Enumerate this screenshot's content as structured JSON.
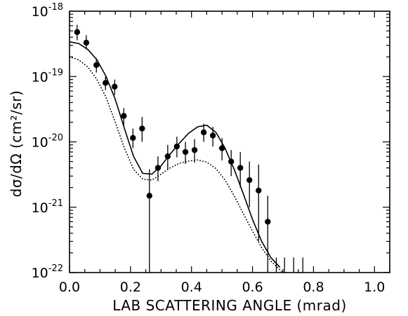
{
  "chart_data": {
    "type": "scatter",
    "xlabel": "LAB SCATTERING ANGLE (mrad)",
    "ylabel": "dσ/dΩ (cm²/sr)",
    "xlim": [
      0.0,
      1.05
    ],
    "ylim": [
      1e-22,
      1e-18
    ],
    "yscale": "log",
    "grid": false,
    "x_ticks": [
      "0.0",
      "0.2",
      "0.4",
      "0.6",
      "0.8",
      "1.0"
    ],
    "y_tick_mantissa": "10",
    "y_tick_exponents": [
      "-22",
      "-21",
      "-20",
      "-19",
      "-18"
    ],
    "series": [
      {
        "kind": "points-with-error-bars",
        "x": [
          0.025,
          0.055,
          0.088,
          0.118,
          0.148,
          0.178,
          0.208,
          0.238,
          0.262,
          0.29,
          0.322,
          0.352,
          0.38,
          0.41,
          0.44,
          0.47,
          0.5,
          0.53,
          0.56,
          0.59,
          0.62,
          0.65
        ],
        "y": [
          4.8e-19,
          3.3e-19,
          1.5e-19,
          8e-20,
          7e-20,
          2.5e-20,
          1.15e-20,
          1.6e-20,
          1.5e-21,
          4e-21,
          6e-21,
          8.5e-21,
          7e-21,
          7.5e-21,
          1.4e-20,
          1.25e-20,
          8e-21,
          5e-21,
          4e-21,
          2.6e-21,
          1.8e-21,
          6e-22
        ],
        "y_low": [
          3.6e-19,
          2.6e-19,
          1.15e-19,
          6.2e-20,
          5.2e-20,
          1.8e-20,
          8e-21,
          1e-20,
          1e-22,
          2.5e-21,
          3.8e-21,
          5.8e-21,
          4.6e-21,
          4.8e-21,
          1e-20,
          8.5e-21,
          5.2e-21,
          3e-21,
          2e-21,
          1e-21,
          3e-22,
          1e-22
        ],
        "y_high": [
          6.2e-19,
          4.3e-19,
          1.9e-19,
          1e-19,
          9e-20,
          3.3e-20,
          1.6e-20,
          2.4e-20,
          3.8e-21,
          6e-21,
          9e-21,
          1.2e-20,
          1e-20,
          1.1e-20,
          1.9e-20,
          1.7e-20,
          1.15e-20,
          7.5e-21,
          7e-21,
          5e-21,
          4.5e-21,
          1.5e-21
        ]
      },
      {
        "kind": "upper-limit-bars",
        "x": [
          0.678,
          0.705,
          0.735,
          0.765
        ],
        "y_low": [
          1e-22,
          1e-22,
          1e-22,
          1e-22
        ],
        "y_high": [
          1.7e-22,
          1.7e-22,
          1.7e-22,
          1.7e-22
        ]
      },
      {
        "kind": "solid-line",
        "x": [
          0.0,
          0.03,
          0.06,
          0.09,
          0.12,
          0.15,
          0.18,
          0.21,
          0.24,
          0.27,
          0.3,
          0.33,
          0.36,
          0.39,
          0.42,
          0.45,
          0.48,
          0.51,
          0.54,
          0.57,
          0.6,
          0.63,
          0.66,
          0.69
        ],
        "y": [
          3.4e-19,
          3.2e-19,
          2.6e-19,
          1.8e-19,
          1e-19,
          4.5e-20,
          1.6e-20,
          6e-21,
          3.3e-21,
          3.2e-21,
          4.3e-21,
          6.5e-21,
          9.5e-21,
          1.35e-20,
          1.7e-20,
          1.8e-20,
          1.4e-20,
          8e-21,
          3.8e-21,
          1.6e-21,
          6.5e-22,
          3e-22,
          1.7e-22,
          1.2e-22
        ]
      },
      {
        "kind": "dotted-line",
        "x": [
          0.0,
          0.03,
          0.06,
          0.09,
          0.12,
          0.15,
          0.18,
          0.21,
          0.24,
          0.27,
          0.3,
          0.33,
          0.36,
          0.39,
          0.42,
          0.45,
          0.48,
          0.51,
          0.54,
          0.57,
          0.6,
          0.63,
          0.66,
          0.69,
          0.7
        ],
        "y": [
          2e-19,
          1.8e-19,
          1.4e-19,
          9e-20,
          4.8e-20,
          2e-20,
          8e-21,
          3.8e-21,
          2.7e-21,
          2.6e-21,
          3.2e-21,
          4e-21,
          4.7e-21,
          5.1e-21,
          5.3e-21,
          4.9e-21,
          3.9e-21,
          2.6e-21,
          1.5e-21,
          8e-22,
          4.3e-22,
          2.4e-22,
          1.5e-22,
          1.1e-22,
          1e-22
        ]
      }
    ]
  }
}
